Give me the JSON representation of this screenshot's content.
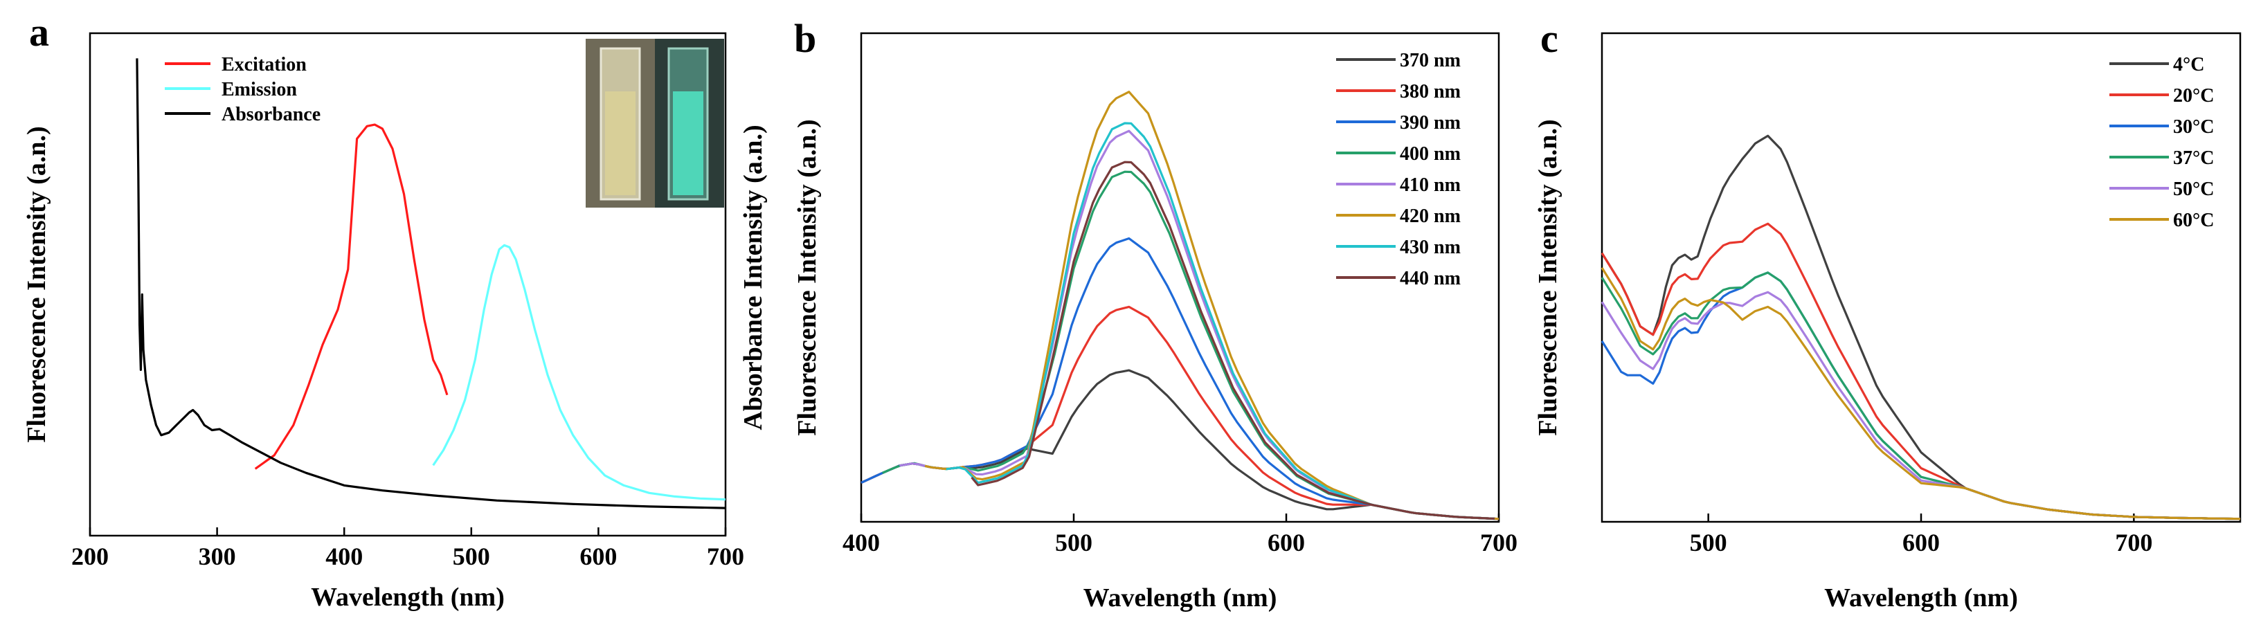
{
  "chart_data": [
    {
      "panel": "a",
      "type": "line",
      "xlabel": "Wavelength (nm)",
      "ylabel": "Fluorescence Intensity (a.n.)",
      "xlim": [
        200,
        700
      ],
      "ylim": [
        0,
        1
      ],
      "xticks": [
        200,
        300,
        400,
        500,
        600,
        700
      ],
      "yticks_shown": false,
      "legend_position": "top-left",
      "inset": "two cuvette photographs at top-right",
      "series": [
        {
          "name": "Excitation",
          "color": "#ff1a1a",
          "x": [
            330,
            345,
            360,
            372,
            383,
            395,
            403,
            410,
            418,
            424,
            430,
            438,
            447,
            455,
            463,
            470,
            476,
            481
          ],
          "y": [
            0.133,
            0.16,
            0.22,
            0.3,
            0.38,
            0.45,
            0.53,
            0.79,
            0.815,
            0.818,
            0.81,
            0.77,
            0.68,
            0.55,
            0.43,
            0.35,
            0.32,
            0.28
          ]
        },
        {
          "name": "Emission",
          "color": "#66ffff",
          "x": [
            470,
            478,
            486,
            495,
            503,
            510,
            516,
            522,
            526,
            530,
            535,
            542,
            550,
            560,
            570,
            580,
            592,
            605,
            620,
            640,
            660,
            680,
            700
          ],
          "y": [
            0.14,
            0.17,
            0.21,
            0.27,
            0.35,
            0.45,
            0.52,
            0.57,
            0.578,
            0.574,
            0.55,
            0.49,
            0.41,
            0.32,
            0.25,
            0.2,
            0.155,
            0.12,
            0.1,
            0.085,
            0.078,
            0.074,
            0.072
          ]
        },
        {
          "name": "Absorbance",
          "color": "#000000",
          "x": [
            237,
            238,
            239,
            240,
            241,
            242,
            244,
            248,
            252,
            256,
            262,
            268,
            274,
            278,
            281,
            285,
            290,
            296,
            302,
            310,
            320,
            335,
            350,
            370,
            400,
            430,
            470,
            520,
            580,
            640,
            700
          ],
          "y": [
            0.95,
            0.72,
            0.42,
            0.33,
            0.48,
            0.37,
            0.31,
            0.26,
            0.22,
            0.2,
            0.205,
            0.22,
            0.235,
            0.245,
            0.25,
            0.24,
            0.22,
            0.21,
            0.212,
            0.2,
            0.185,
            0.165,
            0.145,
            0.125,
            0.1,
            0.09,
            0.08,
            0.07,
            0.063,
            0.058,
            0.055
          ]
        }
      ]
    },
    {
      "panel": "b",
      "type": "line",
      "xlabel": "Wavelength (nm)",
      "ylabel": "Absorbance Intensity (a.n.)\nFluorescence Intensity (a.n.)",
      "xlim": [
        400,
        700
      ],
      "ylim": [
        0,
        1
      ],
      "xticks": [
        400,
        500,
        600,
        700
      ],
      "yticks_shown": false,
      "legend_position": "top-right",
      "series": [
        {
          "name": "370 nm",
          "color": "#404040",
          "peak": 0.31,
          "shoulder": 0.1,
          "start_x": 400
        },
        {
          "name": "380 nm",
          "color": "#e8362c",
          "peak": 0.44,
          "shoulder": 0.105,
          "start_x": 400
        },
        {
          "name": "390 nm",
          "color": "#1e6ad8",
          "peak": 0.58,
          "shoulder": 0.105,
          "start_x": 400
        },
        {
          "name": "400 nm",
          "color": "#26a06a",
          "peak": 0.72,
          "shoulder": 0.095,
          "start_x": 410
        },
        {
          "name": "410 nm",
          "color": "#a87ee0",
          "peak": 0.8,
          "shoulder": 0.085,
          "start_x": 418
        },
        {
          "name": "420 nm",
          "color": "#c7941a",
          "peak": 0.88,
          "shoulder": 0.075,
          "start_x": 430
        },
        {
          "name": "430 nm",
          "color": "#22c2cc",
          "peak": 0.82,
          "shoulder": 0.07,
          "start_x": 440
        },
        {
          "name": "440 nm",
          "color": "#7a3b3b",
          "peak": 0.74,
          "shoulder": 0.065,
          "start_x": 452
        }
      ]
    },
    {
      "panel": "c",
      "type": "line",
      "xlabel": "Wavelength (nm)",
      "ylabel": "Fluorescence Intensity (a.n.)",
      "xlim": [
        450,
        750
      ],
      "ylim": [
        0,
        1
      ],
      "xticks": [
        500,
        600,
        700
      ],
      "yticks_shown": false,
      "legend_position": "top-right",
      "series": [
        {
          "name": "4°C",
          "color": "#404040",
          "y0": 0.55,
          "dip": 0.38,
          "shoulder": 0.55,
          "peak": 0.79
        },
        {
          "name": "20°C",
          "color": "#e8362c",
          "y0": 0.55,
          "dip": 0.38,
          "shoulder": 0.51,
          "peak": 0.61
        },
        {
          "name": "30°C",
          "color": "#1e6ad8",
          "y0": 0.37,
          "dip": 0.28,
          "shoulder": 0.4,
          "peak": 0.51
        },
        {
          "name": "37°C",
          "color": "#26a06a",
          "y0": 0.5,
          "dip": 0.34,
          "shoulder": 0.43,
          "peak": 0.51
        },
        {
          "name": "50°C",
          "color": "#a87ee0",
          "y0": 0.45,
          "dip": 0.31,
          "shoulder": 0.42,
          "peak": 0.47
        },
        {
          "name": "60°C",
          "color": "#c7941a",
          "y0": 0.52,
          "dip": 0.35,
          "shoulder": 0.46,
          "peak": 0.44
        }
      ]
    }
  ]
}
